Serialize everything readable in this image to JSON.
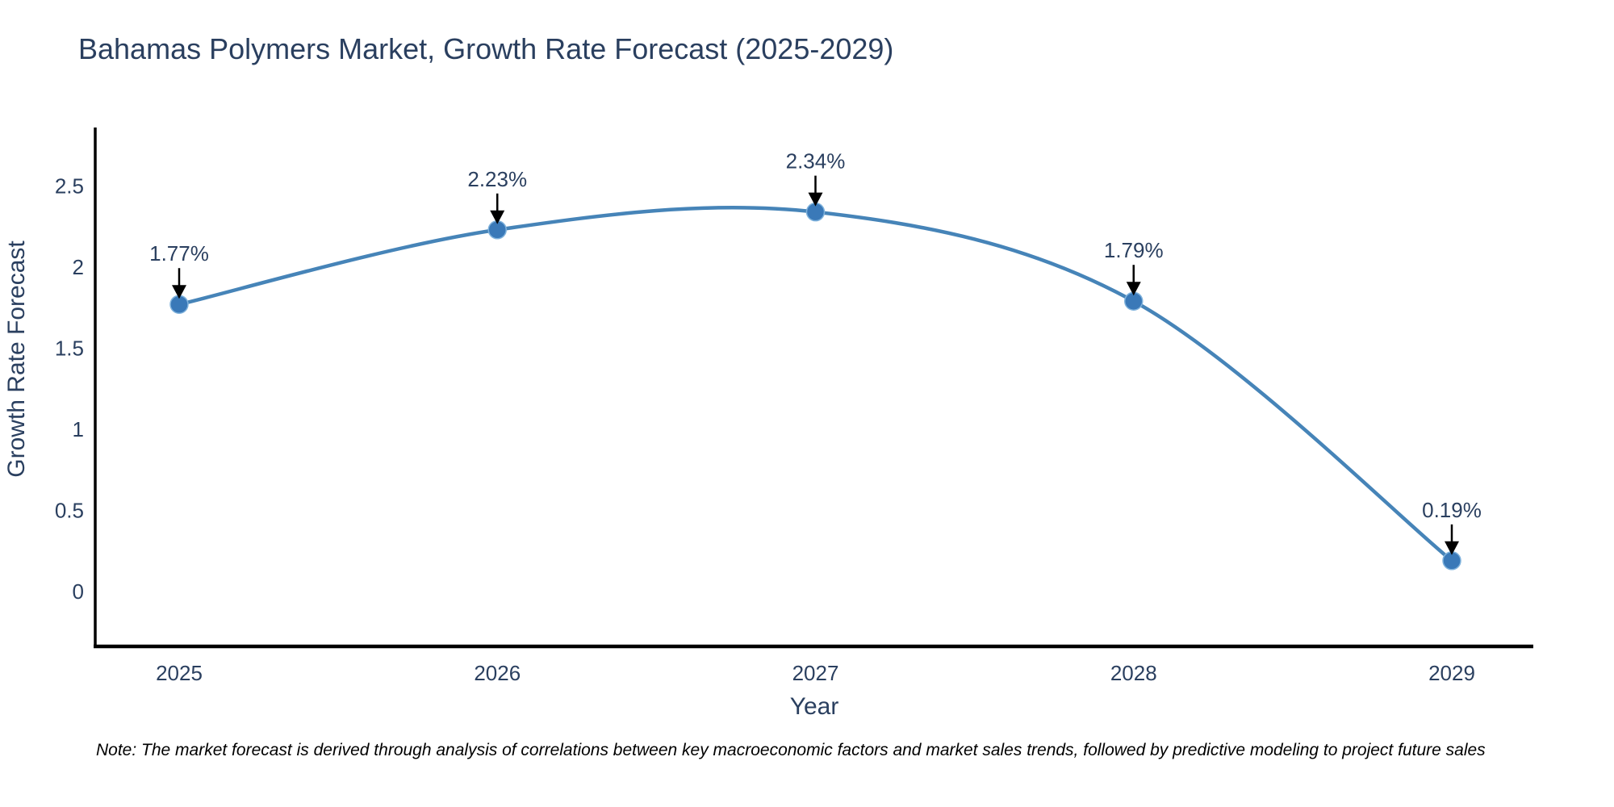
{
  "figure": {
    "title": "Bahamas Polymers Market, Growth Rate Forecast (2025-2029)",
    "note": "Note: The market forecast is derived through analysis of correlations between key macroeconomic factors and market sales trends, followed by predictive modeling to project future sales"
  },
  "chart_data": {
    "type": "line",
    "line_shape": "spline",
    "title": "Bahamas Polymers Market, Growth Rate Forecast (2025-2029)",
    "xlabel": "Year",
    "ylabel": "Growth Rate Forecast",
    "x": [
      2025,
      2026,
      2027,
      2028,
      2029
    ],
    "values": [
      1.77,
      2.23,
      2.34,
      1.79,
      0.19
    ],
    "point_labels": [
      "1.77%",
      "2.23%",
      "2.34%",
      "1.79%",
      "0.19%"
    ],
    "yticks": [
      0,
      0.5,
      1,
      1.5,
      2,
      2.5
    ],
    "ylim": [
      -0.35,
      2.85
    ],
    "grid": false,
    "legend": "none",
    "markers": true,
    "annotations_arrows": true,
    "colors": {
      "line": "#4684b8",
      "marker_fill": "#3a79b8",
      "marker_edge": "#7fb2dc",
      "axis": "#000000",
      "text": "#2a3f5f",
      "arrow": "#000000",
      "note_text": "#000000"
    }
  }
}
